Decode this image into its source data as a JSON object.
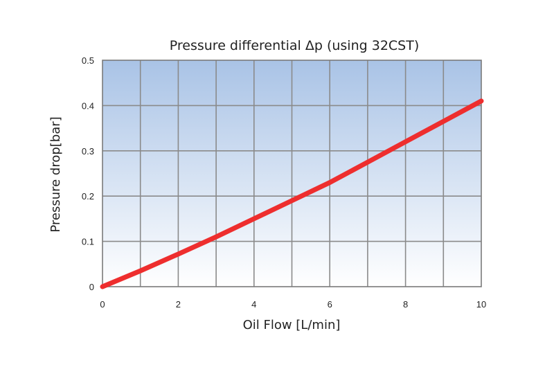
{
  "chart_data": {
    "type": "line",
    "title": "Pressure differential Δp (using 32CST)",
    "xlabel": "Oil Flow [L/min]",
    "ylabel": "Pressure drop[bar]",
    "xlim": [
      0,
      10
    ],
    "ylim": [
      0,
      0.5
    ],
    "x_ticks": [
      0,
      2,
      4,
      6,
      8,
      10
    ],
    "x_tick_labels": [
      "0",
      "2",
      "4",
      "6",
      "8",
      "10"
    ],
    "y_ticks": [
      0,
      0.1,
      0.2,
      0.3,
      0.4,
      0.5
    ],
    "y_tick_labels": [
      "0",
      "0.1",
      "0.2",
      "0.3",
      "0.4",
      "0.5"
    ],
    "x_grid_step": 1,
    "y_grid_step": 0.1,
    "grid": true,
    "legend": "none",
    "series": [
      {
        "name": "Pressure drop",
        "color": "#ee2e2e",
        "x": [
          0,
          1,
          2,
          3,
          4,
          5,
          6,
          7,
          8,
          9,
          10
        ],
        "y": [
          0,
          0.035,
          0.072,
          0.11,
          0.15,
          0.19,
          0.23,
          0.275,
          0.32,
          0.365,
          0.41
        ]
      }
    ],
    "background_gradient": {
      "top": "#a9c3e6",
      "bottom": "#ffffff"
    },
    "grid_color": "#8a8a8a"
  }
}
